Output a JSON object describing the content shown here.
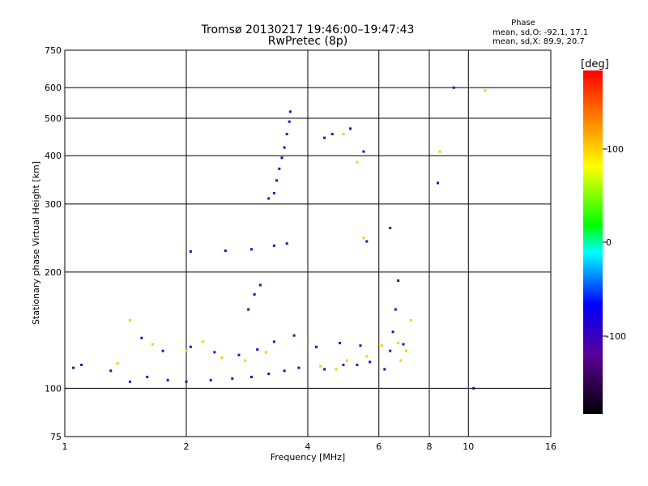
{
  "header": {
    "title_line1": "Tromsø 20130217 19:46:00–19:47:43",
    "title_line2": "RwPretec (8p)",
    "phase_title": "Phase",
    "phase_o": "mean, sd,O: -92.1, 17.1",
    "phase_x": "mean, sd,X:  89.9, 20.7"
  },
  "colorbar": {
    "unit_label": "[deg]",
    "ticks": [
      "100",
      "0",
      "-100"
    ]
  },
  "chart_data": {
    "type": "scatter",
    "xlabel": "Frequency [MHz]",
    "ylabel": "Stationary phase Virtual Height [km]",
    "xscale": "log",
    "yscale": "log",
    "xlim": [
      1,
      16
    ],
    "ylim": [
      75,
      750
    ],
    "xticks": [
      1,
      2,
      4,
      6,
      8,
      10,
      16
    ],
    "xtick_labels": [
      "1",
      "2",
      "4",
      "6",
      "8",
      "10",
      "16"
    ],
    "yticks": [
      75,
      100,
      200,
      300,
      400,
      500,
      600,
      750
    ],
    "ytick_labels": [
      "75",
      "100",
      "200",
      "300",
      "400",
      "500",
      "600",
      "750"
    ],
    "grid": true,
    "color_scale": {
      "label": "[deg]",
      "range": [
        -180,
        180
      ],
      "colors": [
        "#000000",
        "#5a0096",
        "#0000ff",
        "#00ffff",
        "#00ff00",
        "#ffff00",
        "#ff0000"
      ]
    },
    "series": [
      {
        "values": [
          [
            1.05,
            113
          ],
          [
            1.1,
            115
          ],
          [
            1.3,
            111
          ],
          [
            1.45,
            104
          ],
          [
            1.6,
            107
          ],
          [
            1.8,
            105
          ],
          [
            2.0,
            104
          ],
          [
            2.3,
            105
          ],
          [
            2.6,
            106
          ],
          [
            2.9,
            107
          ],
          [
            3.2,
            109
          ],
          [
            3.5,
            111
          ],
          [
            3.8,
            113
          ],
          [
            1.55,
            135
          ],
          [
            1.75,
            125
          ],
          [
            2.05,
            128
          ],
          [
            2.35,
            124
          ],
          [
            2.7,
            122
          ],
          [
            3.0,
            126
          ],
          [
            3.3,
            132
          ],
          [
            3.7,
            137
          ],
          [
            2.05,
            226
          ],
          [
            2.5,
            227
          ],
          [
            2.9,
            229
          ],
          [
            3.3,
            234
          ],
          [
            3.55,
            237
          ],
          [
            3.2,
            310
          ],
          [
            3.3,
            320
          ],
          [
            3.35,
            345
          ],
          [
            3.4,
            370
          ],
          [
            3.45,
            395
          ],
          [
            3.5,
            420
          ],
          [
            3.55,
            455
          ],
          [
            3.6,
            490
          ],
          [
            3.62,
            520
          ],
          [
            2.85,
            160
          ],
          [
            2.95,
            175
          ],
          [
            3.05,
            185
          ],
          [
            4.4,
            112
          ],
          [
            4.9,
            115
          ],
          [
            5.3,
            115
          ],
          [
            5.7,
            117
          ],
          [
            4.2,
            128
          ],
          [
            4.8,
            131
          ],
          [
            5.4,
            129
          ],
          [
            4.4,
            445
          ],
          [
            4.6,
            455
          ],
          [
            5.1,
            470
          ],
          [
            5.5,
            410
          ],
          [
            6.2,
            112
          ],
          [
            6.4,
            125
          ],
          [
            6.5,
            140
          ],
          [
            6.6,
            160
          ],
          [
            6.7,
            190
          ],
          [
            6.9,
            130
          ],
          [
            6.4,
            260
          ],
          [
            5.6,
            240
          ],
          [
            9.2,
            600
          ],
          [
            8.4,
            340
          ],
          [
            10.3,
            100
          ]
        ],
        "phase": -100
      },
      {
        "values": [
          [
            1.35,
            116
          ],
          [
            1.65,
            130
          ],
          [
            2.0,
            125
          ],
          [
            2.2,
            132
          ],
          [
            2.45,
            120
          ],
          [
            2.8,
            118
          ],
          [
            3.15,
            124
          ],
          [
            5.0,
            118
          ],
          [
            5.6,
            121
          ],
          [
            6.7,
            131
          ],
          [
            6.8,
            118
          ],
          [
            7.0,
            125
          ],
          [
            7.2,
            150
          ],
          [
            4.9,
            455
          ],
          [
            5.3,
            385
          ],
          [
            4.7,
            112
          ],
          [
            5.5,
            245
          ],
          [
            1.45,
            150
          ],
          [
            8.5,
            410
          ],
          [
            11.0,
            590
          ],
          [
            4.3,
            114
          ],
          [
            6.1,
            129
          ]
        ],
        "phase": 100
      }
    ]
  }
}
